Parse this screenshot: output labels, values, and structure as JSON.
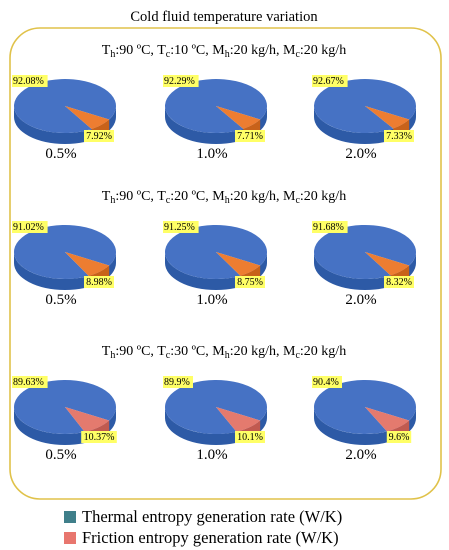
{
  "title": "Cold fluid temperature variation",
  "colors": {
    "frame": "#e0c24a",
    "thermal_top": "#4672c4",
    "thermal_side": "#2d5aa6",
    "friction_orange_top": "#ed7d31",
    "friction_orange_side": "#c8621a",
    "friction_pink_top": "#e47a6e",
    "friction_pink_side": "#c15a50",
    "label_bg": "#ffff66",
    "legend_thermal": "#3f7f8a",
    "legend_friction": "#e8766e"
  },
  "legend": {
    "thermal": "Thermal entropy generation rate (W/K)",
    "friction": "Friction entropy generation rate (W/K)"
  },
  "chart_data": [
    {
      "type": "pie",
      "group_label": {
        "Th": "90 ºC",
        "Tc": "10 ºC",
        "Mh": "20 kg/h",
        "Mc": "20 kg/h"
      },
      "friction_style": "orange",
      "pies": [
        {
          "label": "0.5%",
          "thermal": 92.08,
          "friction": 7.92,
          "thermal_text": "92.08%",
          "friction_text": "7.92%"
        },
        {
          "label": "1.0%",
          "thermal": 92.29,
          "friction": 7.71,
          "thermal_text": "92.29%",
          "friction_text": "7.71%"
        },
        {
          "label": "2.0%",
          "thermal": 92.67,
          "friction": 7.33,
          "thermal_text": "92.67%",
          "friction_text": "7.33%"
        }
      ]
    },
    {
      "type": "pie",
      "group_label": {
        "Th": "90 ºC",
        "Tc": "20 ºC",
        "Mh": "20 kg/h",
        "Mc": "20 kg/h"
      },
      "friction_style": "orange",
      "pies": [
        {
          "label": "0.5%",
          "thermal": 91.02,
          "friction": 8.98,
          "thermal_text": "91.02%",
          "friction_text": "8.98%"
        },
        {
          "label": "1.0%",
          "thermal": 91.25,
          "friction": 8.75,
          "thermal_text": "91.25%",
          "friction_text": "8.75%"
        },
        {
          "label": "2.0%",
          "thermal": 91.68,
          "friction": 8.32,
          "thermal_text": "91.68%",
          "friction_text": "8.32%"
        }
      ]
    },
    {
      "type": "pie",
      "group_label": {
        "Th": "90 ºC",
        "Tc": "30 ºC",
        "Mh": "20 kg/h",
        "Mc": "20 kg/h"
      },
      "friction_style": "pink",
      "pies": [
        {
          "label": "0.5%",
          "thermal": 89.63,
          "friction": 10.37,
          "thermal_text": "89.63%",
          "friction_text": "10.37%"
        },
        {
          "label": "1.0%",
          "thermal": 89.9,
          "friction": 10.1,
          "thermal_text": "89.9%",
          "friction_text": "10.1%"
        },
        {
          "label": "2.0%",
          "thermal": 90.4,
          "friction": 9.6,
          "thermal_text": "90.4%",
          "friction_text": "9.6%"
        }
      ]
    }
  ]
}
